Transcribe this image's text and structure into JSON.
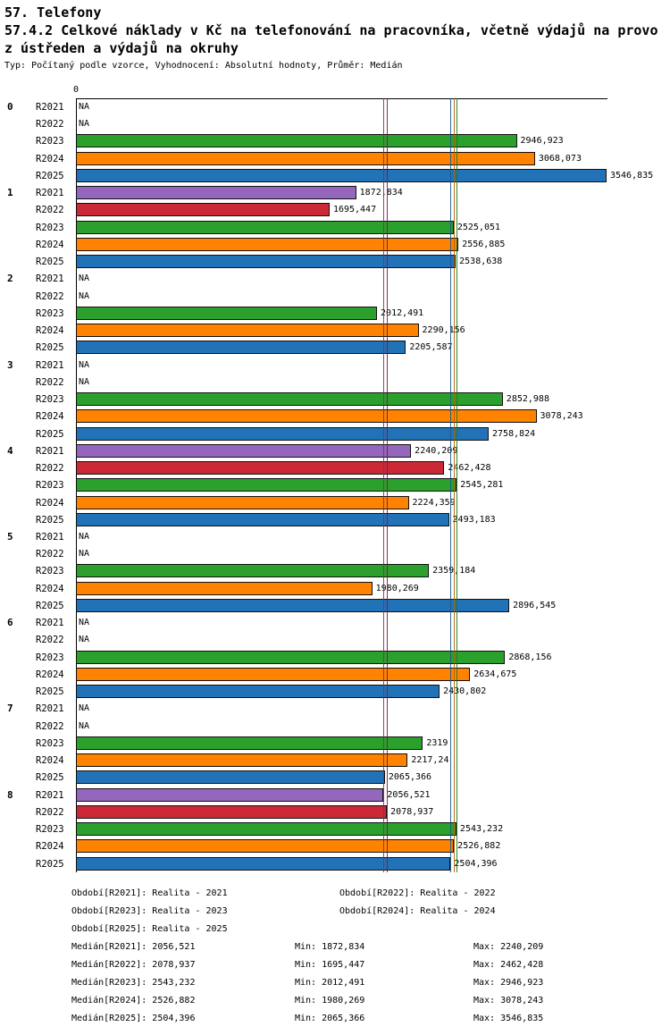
{
  "chart_data": {
    "type": "bar",
    "orientation": "horizontal",
    "title": "57. Telefony",
    "subtitle_lines": [
      "57.4.2 Celkové náklady v Kč na telefonování na pracovníka, včetně výdajů na provo",
      "z ústředen a výdajů na okruhy"
    ],
    "meta": "Typ: Počítaný podle vzorce, Vyhodnocení: Absolutní hodnoty, Průměr: Medián",
    "axis_zero_label": "0",
    "na_label": "NA",
    "xlim": [
      0,
      3546.835
    ],
    "grid": false,
    "categories": [
      "0",
      "1",
      "2",
      "3",
      "4",
      "5",
      "6",
      "7",
      "8"
    ],
    "series_names": [
      "R2021",
      "R2022",
      "R2023",
      "R2024",
      "R2025"
    ],
    "series_colors": {
      "R2021": "#9467bd",
      "R2022": "#cc2936",
      "R2023": "#2ca02c",
      "R2024": "#ff8200",
      "R2025": "#2272b8"
    },
    "median_line_colors": {
      "R2021": "#5e3c78",
      "R2022": "#8c1626",
      "R2023": "#1e7a1e",
      "R2024": "#b05e00",
      "R2025": "#1a568c"
    },
    "groups": [
      {
        "category": "0",
        "values": [
          null,
          null,
          2946.923,
          3068.073,
          3546.835
        ],
        "labels": [
          "NA",
          "NA",
          "2946,923",
          "3068,073",
          "3546,835"
        ]
      },
      {
        "category": "1",
        "values": [
          1872.834,
          1695.447,
          2525.051,
          2556.885,
          2538.638
        ],
        "labels": [
          "1872,834",
          "1695,447",
          "2525,051",
          "2556,885",
          "2538,638"
        ]
      },
      {
        "category": "2",
        "values": [
          null,
          null,
          2012.491,
          2290.156,
          2205.587
        ],
        "labels": [
          "NA",
          "NA",
          "2012,491",
          "2290,156",
          "2205,587"
        ]
      },
      {
        "category": "3",
        "values": [
          null,
          null,
          2852.988,
          3078.243,
          2758.824
        ],
        "labels": [
          "NA",
          "NA",
          "2852,988",
          "3078,243",
          "2758,824"
        ]
      },
      {
        "category": "4",
        "values": [
          2240.209,
          2462.428,
          2545.281,
          2224.359,
          2493.183
        ],
        "labels": [
          "2240,209",
          "2462,428",
          "2545,281",
          "2224,359",
          "2493,183"
        ]
      },
      {
        "category": "5",
        "values": [
          null,
          null,
          2359.184,
          1980.269,
          2896.545
        ],
        "labels": [
          "NA",
          "NA",
          "2359,184",
          "1980,269",
          "2896,545"
        ]
      },
      {
        "category": "6",
        "values": [
          null,
          null,
          2868.156,
          2634.675,
          2430.802
        ],
        "labels": [
          "NA",
          "NA",
          "2868,156",
          "2634,675",
          "2430,802"
        ]
      },
      {
        "category": "7",
        "values": [
          null,
          null,
          2319,
          2217.24,
          2065.366
        ],
        "labels": [
          "NA",
          "NA",
          "2319",
          "2217,24",
          "2065,366"
        ]
      },
      {
        "category": "8",
        "values": [
          2056.521,
          2078.937,
          2543.232,
          2526.882,
          2504.396
        ],
        "labels": [
          "2056,521",
          "2078,937",
          "2543,232",
          "2526,882",
          "2504,396"
        ]
      }
    ],
    "medians": {
      "R2021": 2056.521,
      "R2022": 2078.937,
      "R2023": 2543.232,
      "R2024": 2526.882,
      "R2025": 2504.396
    }
  },
  "legend": {
    "items": [
      "Období[R2021]: Realita - 2021",
      "Období[R2022]: Realita - 2022",
      "Období[R2023]: Realita - 2023",
      "Období[R2024]: Realita - 2024",
      "Období[R2025]: Realita - 2025"
    ]
  },
  "stats": {
    "rows": [
      {
        "median": "Medián[R2021]: 2056,521",
        "min": "Min: 1872,834",
        "max": "Max: 2240,209"
      },
      {
        "median": "Medián[R2022]: 2078,937",
        "min": "Min: 1695,447",
        "max": "Max: 2462,428"
      },
      {
        "median": "Medián[R2023]: 2543,232",
        "min": "Min: 2012,491",
        "max": "Max: 2946,923"
      },
      {
        "median": "Medián[R2024]: 2526,882",
        "min": "Min: 1980,269",
        "max": "Max: 3078,243"
      },
      {
        "median": "Medián[R2025]: 2504,396",
        "min": "Min: 2065,366",
        "max": "Max: 3546,835"
      }
    ]
  }
}
